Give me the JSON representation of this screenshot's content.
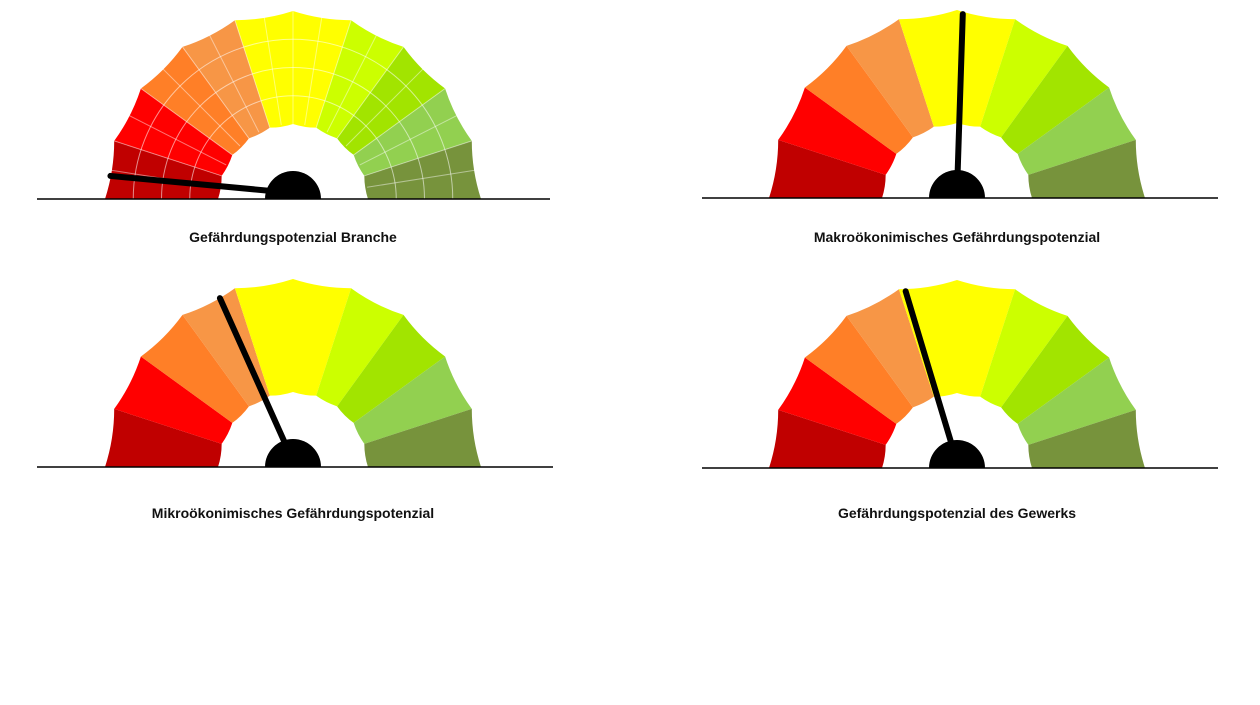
{
  "chart_data": [
    {
      "type": "gauge",
      "title": "Gefährdungspotenzial Branche",
      "range": [
        0,
        100
      ],
      "value": 4,
      "band_colors": [
        "#c00000",
        "#ff0000",
        "#ff7f27",
        "#f79646",
        "#ffff00",
        "#ffff00",
        "#ccff00",
        "#a2e400",
        "#92d050",
        "#77933c"
      ],
      "show_grid": true
    },
    {
      "type": "gauge",
      "title": "Makroökonimisches Gefährdungspotenzial",
      "range": [
        0,
        100
      ],
      "value": 51,
      "band_colors": [
        "#c00000",
        "#ff0000",
        "#ff7f27",
        "#f79646",
        "#ffff00",
        "#ffff00",
        "#ccff00",
        "#a2e400",
        "#92d050",
        "#77933c"
      ],
      "show_grid": false
    },
    {
      "type": "gauge",
      "title": "Mikroökonimisches Gefährdungspotenzial",
      "range": [
        0,
        100
      ],
      "value": 37,
      "band_colors": [
        "#c00000",
        "#ff0000",
        "#ff7f27",
        "#f79646",
        "#ffff00",
        "#ffff00",
        "#ccff00",
        "#a2e400",
        "#92d050",
        "#77933c"
      ],
      "show_grid": false
    },
    {
      "type": "gauge",
      "title": "Gefährdungspotenzial des Gewerks",
      "range": [
        0,
        100
      ],
      "value": 41,
      "band_colors": [
        "#c00000",
        "#ff0000",
        "#ff7f27",
        "#f79646",
        "#ffff00",
        "#ffff00",
        "#ccff00",
        "#a2e400",
        "#92d050",
        "#77933c"
      ],
      "show_grid": false
    }
  ]
}
